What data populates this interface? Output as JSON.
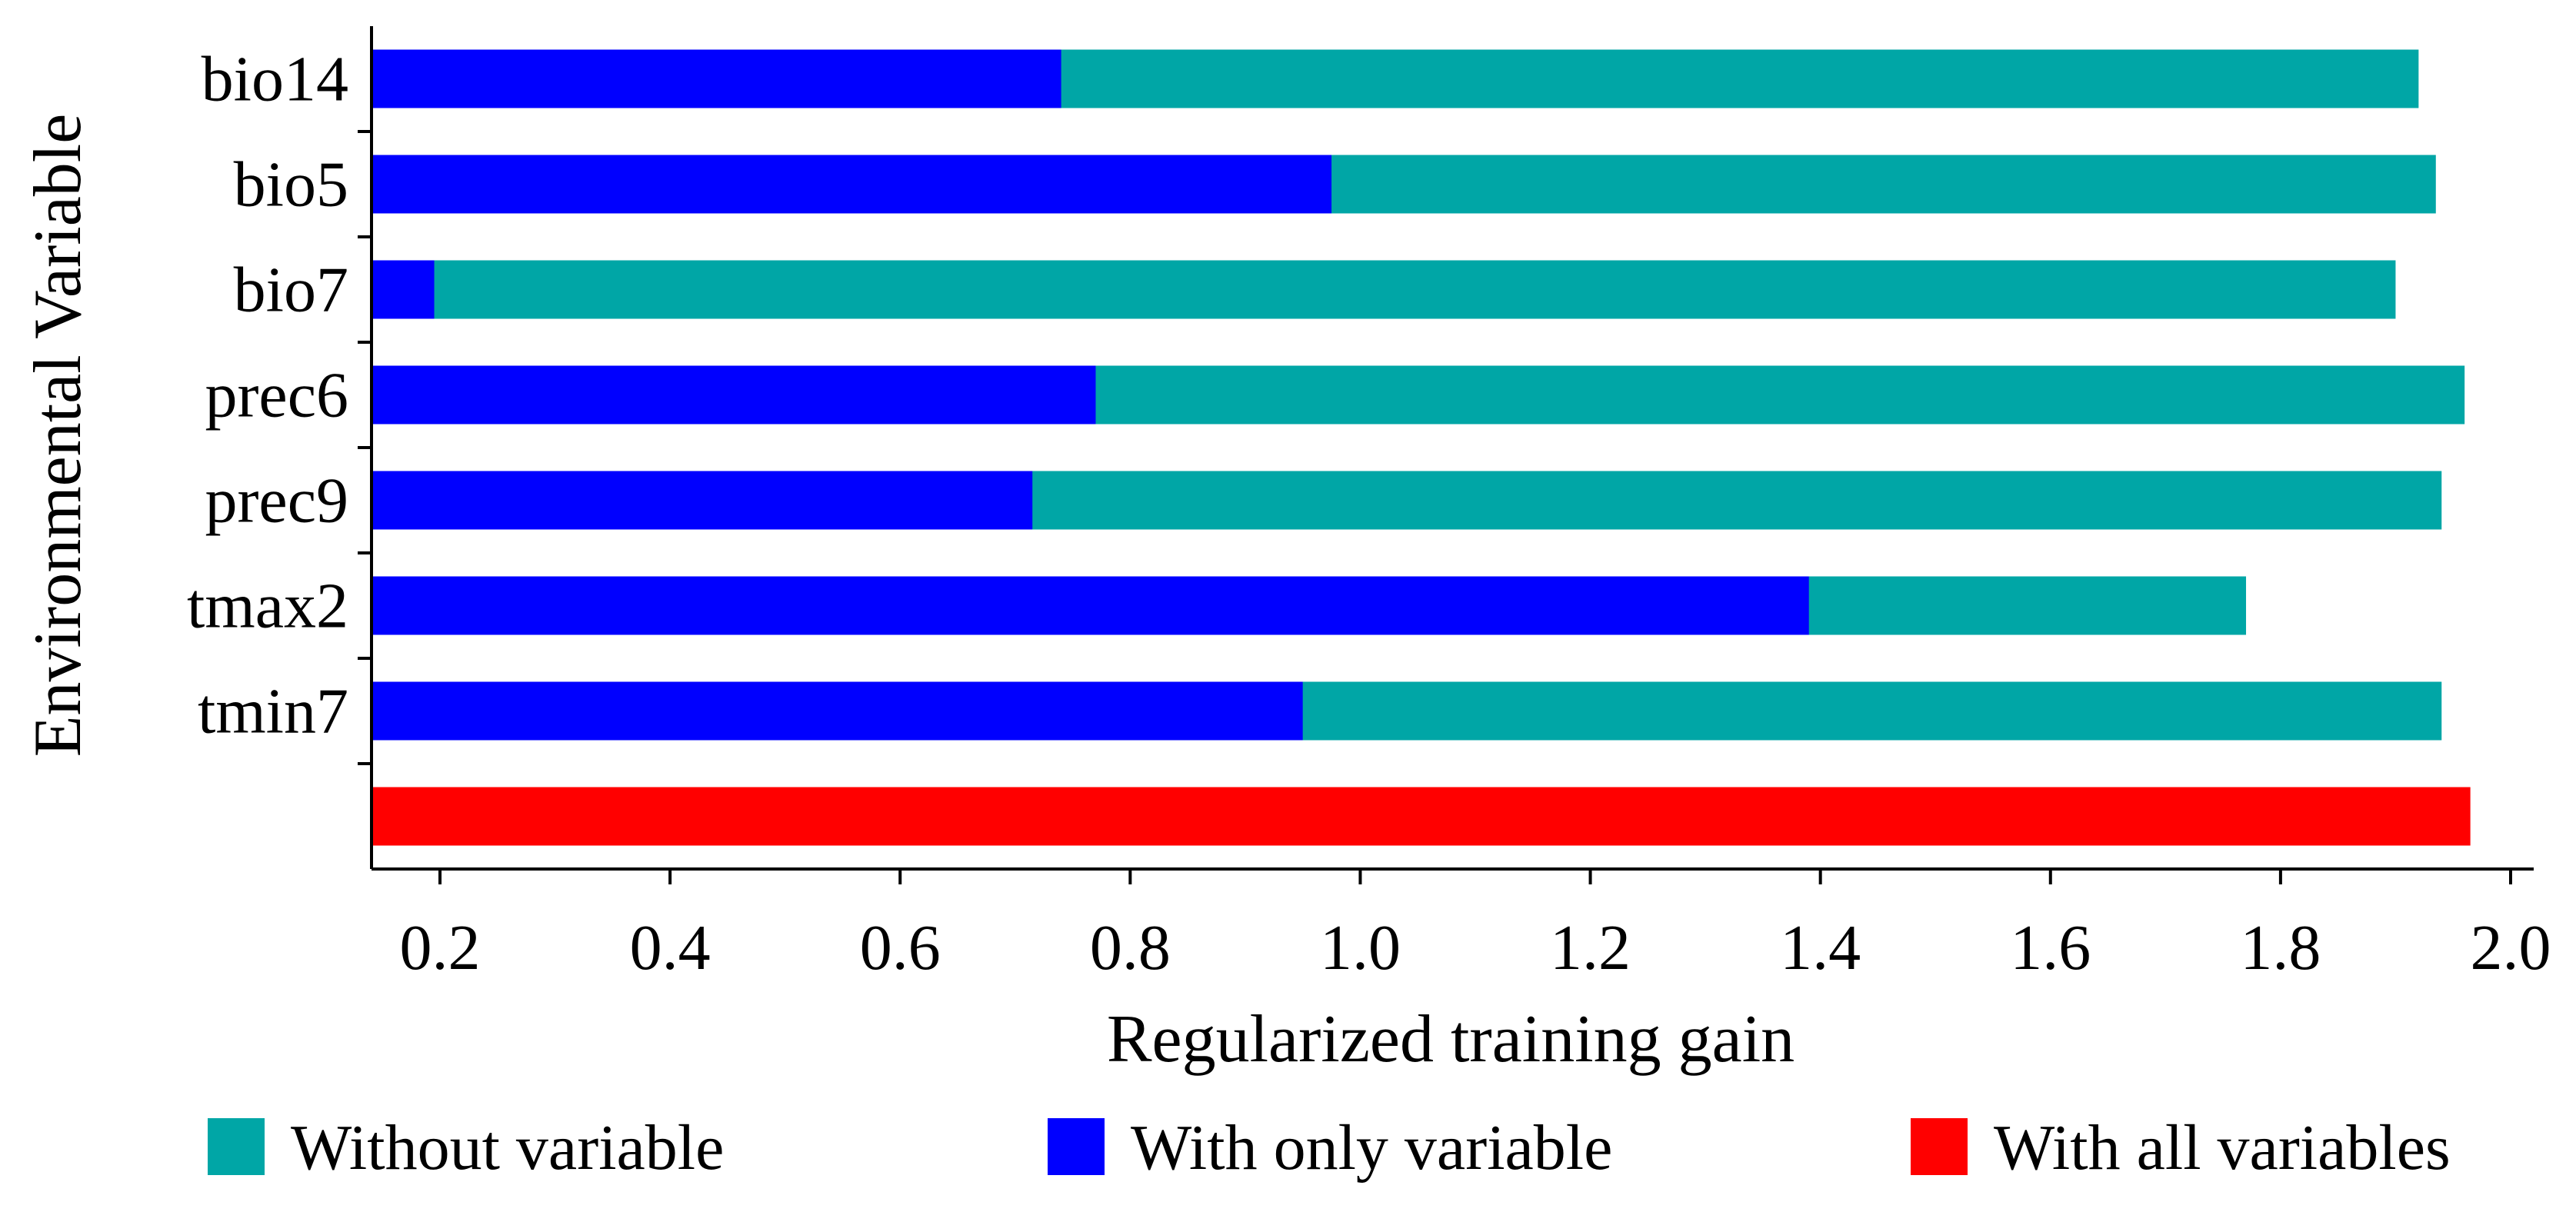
{
  "chart_data": {
    "type": "bar",
    "orientation": "horizontal",
    "title": "",
    "xlabel": "Regularized training gain",
    "ylabel": "Environmental Variable",
    "xlim": [
      0.12,
      2.05
    ],
    "xticks": [
      0.2,
      0.4,
      0.6,
      0.8,
      1.0,
      1.2,
      1.4,
      1.6,
      1.8,
      2.0
    ],
    "xtick_labels": [
      "0.2",
      "0.4",
      "0.6",
      "0.8",
      "1.0",
      "1.2",
      "1.4",
      "1.6",
      "1.8",
      "2.0"
    ],
    "categories": [
      "bio14",
      "bio5",
      "bio7",
      "prec6",
      "prec9",
      "tmax2",
      "tmin7",
      ""
    ],
    "series": [
      {
        "name": "Without variable",
        "color": "#00A6A6",
        "values": [
          1.92,
          1.935,
          1.9,
          1.96,
          1.94,
          1.77,
          1.94,
          null
        ]
      },
      {
        "name": "With only variable",
        "color": "#0000FF",
        "values": [
          0.74,
          0.975,
          0.195,
          0.77,
          0.715,
          1.39,
          0.95,
          null
        ]
      },
      {
        "name": "With all variables",
        "color": "#FF0000",
        "values": [
          null,
          null,
          null,
          null,
          null,
          null,
          null,
          1.965
        ]
      }
    ],
    "legend": {
      "position": "bottom",
      "items": [
        {
          "label": "Without variable",
          "color": "#00A6A6"
        },
        {
          "label": "With only variable",
          "color": "#0000FF"
        },
        {
          "label": "With all variables",
          "color": "#FF0000"
        }
      ]
    },
    "grid": false
  }
}
